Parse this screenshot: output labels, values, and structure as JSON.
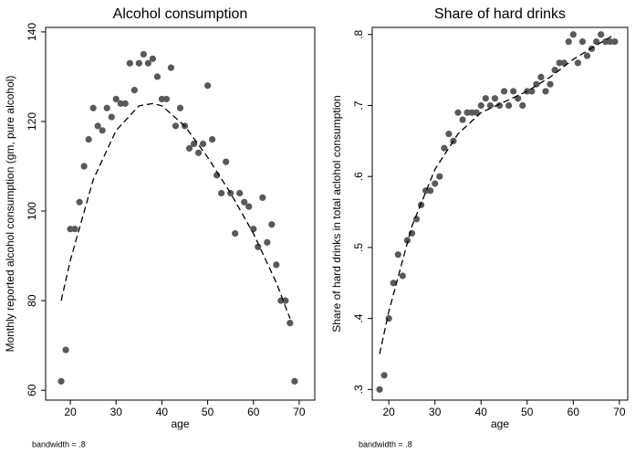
{
  "chart_data": [
    {
      "type": "scatter",
      "title": "Alcohol consumption",
      "x_label": "age",
      "y_label": "Monthly reported alcohol consumption (gm, pure alcohol)",
      "note": "bandwidth = .8",
      "xlim": [
        14.6,
        73.4
      ],
      "ylim": [
        57.8,
        141
      ],
      "xticks": [
        20,
        30,
        40,
        50,
        60,
        70
      ],
      "yticks": [
        60,
        80,
        100,
        120,
        140
      ],
      "series": [
        {
          "mode": "markers",
          "color": "#595959",
          "x": [
            18,
            19,
            20,
            21,
            22,
            23,
            24,
            25,
            26,
            27,
            28,
            29,
            30,
            31,
            32,
            33,
            34,
            35,
            36,
            37,
            38,
            39,
            40,
            41,
            42,
            43,
            44,
            45,
            46,
            47,
            48,
            49,
            50,
            51,
            52,
            53,
            54,
            55,
            56,
            57,
            58,
            59,
            60,
            61,
            62,
            63,
            64,
            65,
            66,
            67,
            68,
            69
          ],
          "values": [
            62,
            69,
            96,
            96,
            102,
            110,
            116,
            123,
            119,
            118,
            123,
            121,
            125,
            124,
            124,
            133,
            127,
            133,
            135,
            133,
            134,
            130,
            125,
            125,
            132,
            119,
            123,
            119,
            114,
            115,
            113,
            115,
            128,
            116,
            108,
            104,
            111,
            104,
            95,
            104,
            102,
            101,
            96,
            92,
            103,
            93,
            97,
            88,
            80,
            80,
            75,
            62
          ]
        },
        {
          "mode": "dashed-line",
          "color": "#000000",
          "x": [
            18,
            20,
            25,
            30,
            35,
            38,
            40,
            45,
            50,
            55,
            60,
            65,
            68
          ],
          "values": [
            80,
            89,
            107,
            118,
            123.5,
            124,
            123.5,
            119,
            112,
            104,
            95,
            84,
            76
          ]
        }
      ]
    },
    {
      "type": "scatter",
      "title": "Share of hard drinks",
      "x_label": "age",
      "y_label": "Share of hard drinks in total aclohol consumption",
      "note": "bandwidth = .8",
      "xlim": [
        16.4,
        71.8
      ],
      "ylim": [
        0.285,
        0.81
      ],
      "xticks": [
        20,
        30,
        40,
        50,
        60,
        70
      ],
      "yticks": [
        {
          "value": 0.3,
          "label": ".3"
        },
        {
          "value": 0.4,
          "label": ".4"
        },
        {
          "value": 0.5,
          "label": ".5"
        },
        {
          "value": 0.6,
          "label": ".6"
        },
        {
          "value": 0.7,
          "label": ".7"
        },
        {
          "value": 0.8,
          "label": ".8"
        }
      ],
      "series": [
        {
          "mode": "markers",
          "color": "#595959",
          "x": [
            18,
            19,
            20,
            21,
            22,
            23,
            24,
            25,
            26,
            27,
            28,
            29,
            30,
            31,
            32,
            33,
            34,
            35,
            36,
            37,
            38,
            39,
            40,
            41,
            42,
            43,
            44,
            45,
            46,
            47,
            48,
            49,
            50,
            51,
            52,
            53,
            54,
            55,
            56,
            57,
            58,
            59,
            60,
            61,
            62,
            63,
            64,
            65,
            66,
            67,
            68,
            69
          ],
          "values": [
            0.3,
            0.32,
            0.4,
            0.45,
            0.49,
            0.46,
            0.51,
            0.52,
            0.54,
            0.56,
            0.58,
            0.58,
            0.59,
            0.6,
            0.64,
            0.66,
            0.65,
            0.69,
            0.68,
            0.69,
            0.69,
            0.69,
            0.7,
            0.71,
            0.7,
            0.71,
            0.7,
            0.72,
            0.7,
            0.72,
            0.71,
            0.7,
            0.72,
            0.72,
            0.73,
            0.74,
            0.72,
            0.73,
            0.75,
            0.76,
            0.76,
            0.79,
            0.8,
            0.76,
            0.79,
            0.77,
            0.78,
            0.79,
            0.8,
            0.79,
            0.79,
            0.79
          ]
        },
        {
          "mode": "dashed-line",
          "color": "#000000",
          "x": [
            18,
            20,
            25,
            30,
            35,
            40,
            45,
            50,
            55,
            60,
            65,
            69
          ],
          "values": [
            0.35,
            0.41,
            0.53,
            0.61,
            0.66,
            0.69,
            0.705,
            0.72,
            0.74,
            0.765,
            0.785,
            0.8
          ]
        }
      ]
    }
  ]
}
